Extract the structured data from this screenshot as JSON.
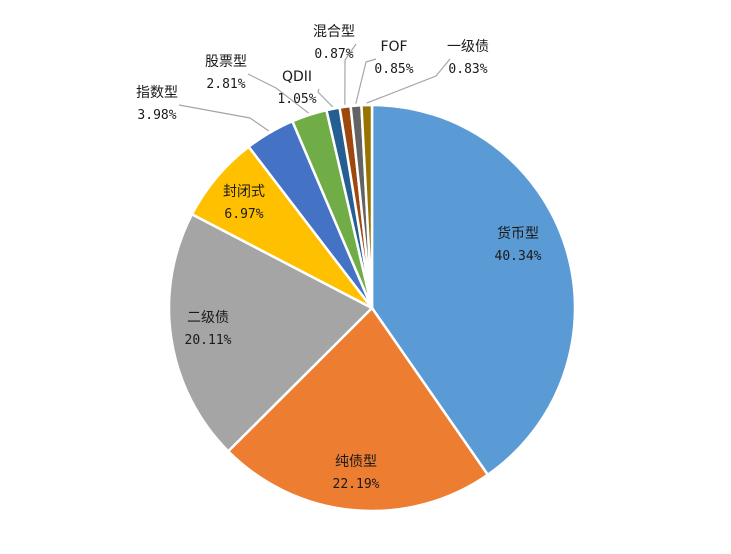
{
  "chart_data": {
    "type": "pie",
    "title": "",
    "start_angle_deg": 0,
    "direction": "clockwise",
    "slices": [
      {
        "label": "货币型",
        "value": 40.34,
        "value_text": "40.34%",
        "color": "#5B9BD5"
      },
      {
        "label": "纯债型",
        "value": 22.19,
        "value_text": "22.19%",
        "color": "#ED7D31"
      },
      {
        "label": "二级债",
        "value": 20.11,
        "value_text": "20.11%",
        "color": "#A5A5A5"
      },
      {
        "label": "封闭式",
        "value": 6.97,
        "value_text": "6.97%",
        "color": "#FFC000"
      },
      {
        "label": "指数型",
        "value": 3.98,
        "value_text": "3.98%",
        "color": "#4472C4"
      },
      {
        "label": "股票型",
        "value": 2.81,
        "value_text": "2.81%",
        "color": "#70AD47"
      },
      {
        "label": "QDII",
        "value": 1.05,
        "value_text": "1.05%",
        "color": "#255E91"
      },
      {
        "label": "混合型",
        "value": 0.87,
        "value_text": "0.87%",
        "color": "#9E480E"
      },
      {
        "label": "FOF",
        "value": 0.85,
        "value_text": "0.85%",
        "color": "#636363"
      },
      {
        "label": "一级债",
        "value": 0.83,
        "value_text": "0.83%",
        "color": "#997300"
      }
    ],
    "legend": "none"
  }
}
